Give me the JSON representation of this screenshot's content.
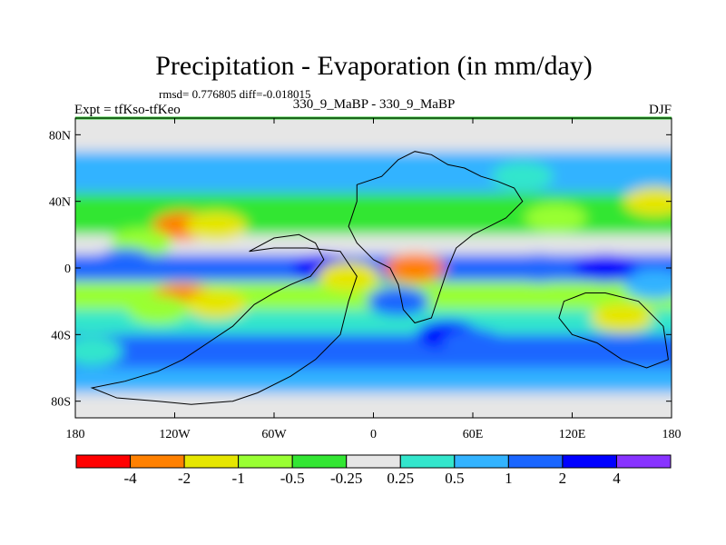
{
  "chart_data": {
    "type": "heatmap",
    "title": "Precipitation - Evaporation (in mm/day)",
    "stats": "rmsd= 0.776805 diff=-0.018015",
    "left_label": "Expt = tfKso-tfKeo",
    "center_label": "330_9_MaBP - 330_9_MaBP",
    "right_label": "DJF",
    "xlim": [
      -180,
      180
    ],
    "ylim": [
      -90,
      90
    ],
    "x_ticks": [
      {
        "value": -180,
        "label": "180"
      },
      {
        "value": -120,
        "label": "120W"
      },
      {
        "value": -60,
        "label": "60W"
      },
      {
        "value": 0,
        "label": "0"
      },
      {
        "value": 60,
        "label": "60E"
      },
      {
        "value": 120,
        "label": "120E"
      },
      {
        "value": 180,
        "label": "180"
      }
    ],
    "y_ticks": [
      {
        "value": 80,
        "label": "80N"
      },
      {
        "value": 40,
        "label": "40N"
      },
      {
        "value": 0,
        "label": "0"
      },
      {
        "value": -40,
        "label": "40S"
      },
      {
        "value": -80,
        "label": "80S"
      }
    ],
    "colorbar": {
      "levels": [
        "-4",
        "-2",
        "-1",
        "-0.5",
        "-0.25",
        "0.25",
        "0.5",
        "1",
        "2",
        "4"
      ],
      "colors": [
        "#ff0000",
        "#ff8000",
        "#e6e600",
        "#99ff33",
        "#33e633",
        "#e6e6e6",
        "#33e6cc",
        "#33b3ff",
        "#1a66ff",
        "#0000ff",
        "#8833ff"
      ]
    },
    "field_bands": [
      {
        "lat": [
          70,
          90
        ],
        "value": 0
      },
      {
        "lat": [
          45,
          70
        ],
        "value": 0.5
      },
      {
        "lat": [
          20,
          45
        ],
        "value": -0.5
      },
      {
        "lat": [
          8,
          20
        ],
        "value": -0.25
      },
      {
        "lat": [
          -8,
          8
        ],
        "value": 1.5
      },
      {
        "lat": [
          -25,
          -8
        ],
        "value": -1
      },
      {
        "lat": [
          -40,
          -25
        ],
        "value": 0.3
      },
      {
        "lat": [
          -60,
          -40
        ],
        "value": 1.2
      },
      {
        "lat": [
          -75,
          -60
        ],
        "value": 0.6
      },
      {
        "lat": [
          -90,
          -75
        ],
        "value": 0
      }
    ],
    "field_blobs": [
      {
        "lon": -115,
        "lat": 25,
        "value": -2.5
      },
      {
        "lon": -95,
        "lat": 25,
        "value": -1.5
      },
      {
        "lon": -140,
        "lat": 15,
        "value": -0.7
      },
      {
        "lon": -115,
        "lat": -18,
        "value": -2.5
      },
      {
        "lon": -95,
        "lat": -22,
        "value": -1.5
      },
      {
        "lon": -130,
        "lat": -25,
        "value": -0.7
      },
      {
        "lon": -150,
        "lat": 3,
        "value": 1.5
      },
      {
        "lon": -30,
        "lat": 0,
        "value": 2.5
      },
      {
        "lon": -15,
        "lat": -5,
        "value": -1.5
      },
      {
        "lon": 15,
        "lat": -20,
        "value": 1.5
      },
      {
        "lon": 25,
        "lat": 0,
        "value": -2.5
      },
      {
        "lon": 45,
        "lat": -40,
        "value": 2.5
      },
      {
        "lon": 60,
        "lat": -45,
        "value": 1.5
      },
      {
        "lon": 100,
        "lat": 0,
        "value": 1.5
      },
      {
        "lon": 140,
        "lat": 0,
        "value": 2.5
      },
      {
        "lon": 110,
        "lat": 30,
        "value": -0.7
      },
      {
        "lon": 90,
        "lat": 55,
        "value": 0.3
      },
      {
        "lon": 150,
        "lat": -30,
        "value": -1.5
      },
      {
        "lon": 170,
        "lat": 40,
        "value": -1.5
      },
      {
        "lon": 170,
        "lat": -10,
        "value": 0.7
      },
      {
        "lon": -60,
        "lat": 55,
        "value": 0.7
      },
      {
        "lon": -170,
        "lat": -50,
        "value": 0.3
      }
    ],
    "land_outlines": [
      [
        [
          -75,
          10
        ],
        [
          -60,
          18
        ],
        [
          -45,
          20
        ],
        [
          -35,
          15
        ],
        [
          -30,
          5
        ],
        [
          -38,
          -5
        ],
        [
          -50,
          -10
        ],
        [
          -60,
          -15
        ],
        [
          -72,
          -22
        ],
        [
          -85,
          -35
        ],
        [
          -100,
          -45
        ],
        [
          -115,
          -55
        ],
        [
          -130,
          -62
        ],
        [
          -150,
          -68
        ],
        [
          -170,
          -72
        ],
        [
          -155,
          -78
        ],
        [
          -130,
          -80
        ],
        [
          -110,
          -82
        ],
        [
          -85,
          -80
        ],
        [
          -70,
          -75
        ],
        [
          -50,
          -65
        ],
        [
          -35,
          -55
        ],
        [
          -20,
          -40
        ],
        [
          -15,
          -20
        ],
        [
          -10,
          -5
        ],
        [
          -20,
          10
        ],
        [
          -40,
          12
        ],
        [
          -60,
          12
        ],
        [
          -75,
          10
        ]
      ],
      [
        [
          -10,
          50
        ],
        [
          5,
          55
        ],
        [
          15,
          65
        ],
        [
          25,
          70
        ],
        [
          35,
          68
        ],
        [
          45,
          62
        ],
        [
          55,
          60
        ],
        [
          65,
          55
        ],
        [
          75,
          52
        ],
        [
          85,
          48
        ],
        [
          90,
          40
        ],
        [
          80,
          30
        ],
        [
          70,
          25
        ],
        [
          60,
          20
        ],
        [
          50,
          12
        ],
        [
          45,
          0
        ],
        [
          40,
          -15
        ],
        [
          35,
          -30
        ],
        [
          25,
          -33
        ],
        [
          18,
          -25
        ],
        [
          15,
          -10
        ],
        [
          10,
          0
        ],
        [
          0,
          5
        ],
        [
          -10,
          15
        ],
        [
          -15,
          25
        ],
        [
          -10,
          40
        ],
        [
          -10,
          50
        ]
      ],
      [
        [
          140,
          -15
        ],
        [
          160,
          -20
        ],
        [
          175,
          -35
        ],
        [
          178,
          -55
        ],
        [
          165,
          -60
        ],
        [
          150,
          -55
        ],
        [
          135,
          -45
        ],
        [
          120,
          -40
        ],
        [
          112,
          -30
        ],
        [
          115,
          -20
        ],
        [
          128,
          -15
        ],
        [
          140,
          -15
        ]
      ]
    ]
  }
}
